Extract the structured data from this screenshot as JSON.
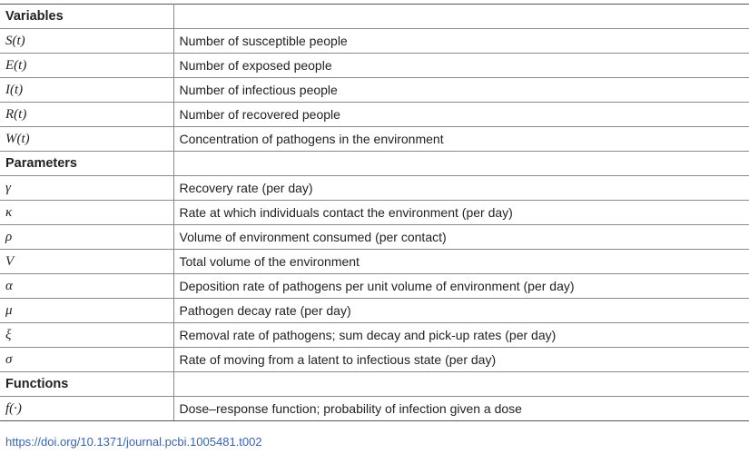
{
  "table": {
    "rows": [
      {
        "kind": "section",
        "label": "Variables"
      },
      {
        "kind": "row",
        "symbol": "S(t)",
        "description": "Number of susceptible people"
      },
      {
        "kind": "row",
        "symbol": "E(t)",
        "description": "Number of exposed people"
      },
      {
        "kind": "row",
        "symbol": "I(t)",
        "description": "Number of infectious people"
      },
      {
        "kind": "row",
        "symbol": "R(t)",
        "description": "Number of recovered people"
      },
      {
        "kind": "row",
        "symbol": "W(t)",
        "description": "Concentration of pathogens in the environment"
      },
      {
        "kind": "section",
        "label": "Parameters"
      },
      {
        "kind": "row",
        "symbol": "γ",
        "description": "Recovery rate (per day)"
      },
      {
        "kind": "row",
        "symbol": "κ",
        "description": "Rate at which individuals contact the environment (per day)"
      },
      {
        "kind": "row",
        "symbol": "ρ",
        "description": "Volume of environment consumed (per contact)"
      },
      {
        "kind": "row",
        "symbol": "V",
        "description": "Total volume of the environment"
      },
      {
        "kind": "row",
        "symbol": "α",
        "description": "Deposition rate of pathogens per unit volume of environment (per day)"
      },
      {
        "kind": "row",
        "symbol": "μ",
        "description": "Pathogen decay rate (per day)"
      },
      {
        "kind": "row",
        "symbol": "ξ",
        "description": "Removal rate of pathogens; sum decay and pick-up rates (per day)"
      },
      {
        "kind": "row",
        "symbol": "σ",
        "description": "Rate of moving from a latent to infectious state (per day)"
      },
      {
        "kind": "section",
        "label": "Functions"
      },
      {
        "kind": "row",
        "symbol": "f(·)",
        "description": "Dose–response function; probability of infection given a dose"
      }
    ]
  },
  "footer": {
    "doi_link": "https://doi.org/10.1371/journal.pcbi.1005481.t002"
  }
}
